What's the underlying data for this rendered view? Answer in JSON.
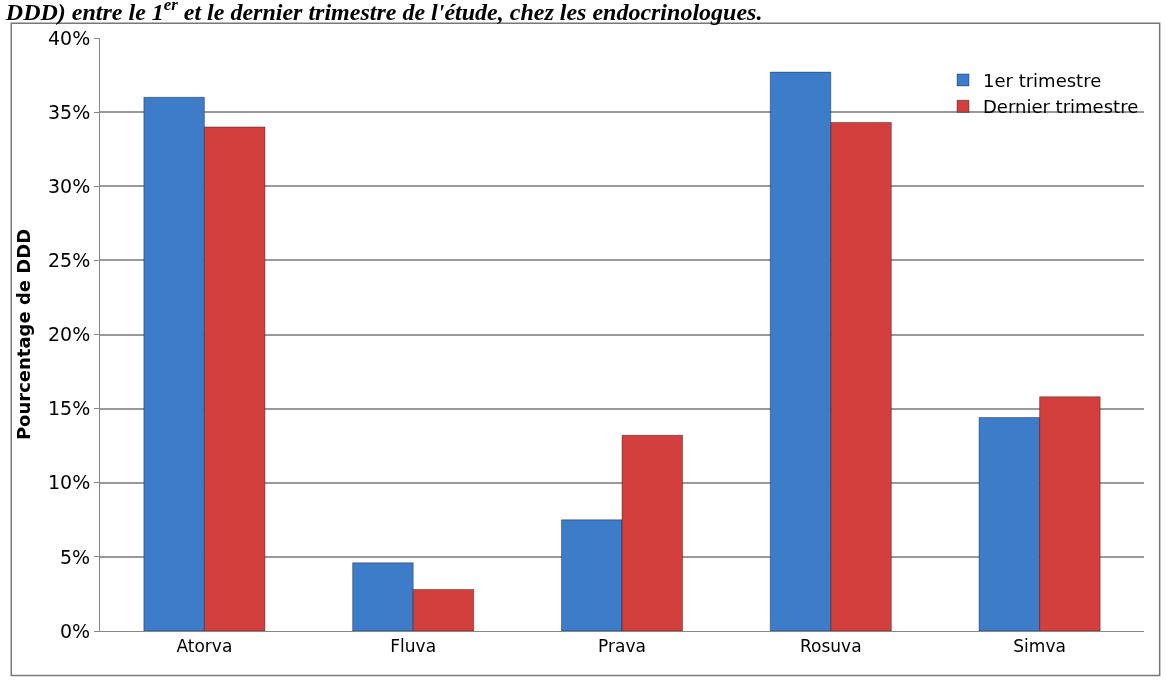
{
  "chart_data": {
    "type": "bar",
    "title": "DDD) entre le 1$^{er}$ et le dernier trimestre de l'étude, chez les endocrinologues.",
    "ylabel": "Pourcentage de DDD",
    "categories": [
      "Atorva",
      "Fluva",
      "Prava",
      "Rosuva",
      "Simva"
    ],
    "series": [
      {
        "name": "1er trimestre",
        "color": "#3d7cc9",
        "values": [
          36,
          4.6,
          7.5,
          37.7,
          14.4
        ]
      },
      {
        "name": "Dernier trimestre",
        "color": "#d33f3c",
        "values": [
          34,
          2.8,
          13.2,
          34.3,
          15.8
        ]
      }
    ],
    "ylim": [
      0,
      40
    ],
    "yticks": [
      {
        "value": 0,
        "label": "0%"
      },
      {
        "value": 5,
        "label": "5%"
      },
      {
        "value": 10,
        "label": "10%"
      },
      {
        "value": 15,
        "label": "15%"
      },
      {
        "value": 20,
        "label": "20%"
      },
      {
        "value": 25,
        "label": "25%"
      },
      {
        "value": 30,
        "label": "30%"
      },
      {
        "value": 35,
        "label": "35%"
      },
      {
        "value": 40,
        "label": "40%"
      }
    ],
    "grid": "y",
    "legend": "top right"
  }
}
